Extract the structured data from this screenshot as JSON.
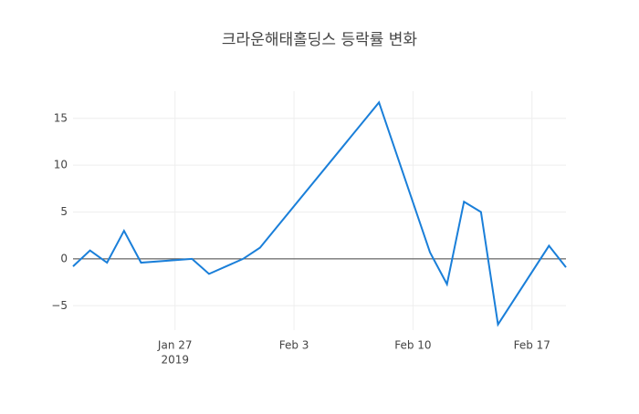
{
  "chart_data": {
    "type": "line",
    "title": "크라운해태홀딩스 등락률 변화",
    "x": [
      "2019-01-21",
      "2019-01-22",
      "2019-01-23",
      "2019-01-24",
      "2019-01-25",
      "2019-01-28",
      "2019-01-29",
      "2019-01-31",
      "2019-02-01",
      "2019-02-08",
      "2019-02-11",
      "2019-02-12",
      "2019-02-13",
      "2019-02-14",
      "2019-02-15",
      "2019-02-18",
      "2019-02-19"
    ],
    "series": [
      {
        "color": "#1a7fd9",
        "values": [
          -0.8,
          0.9,
          -0.4,
          3.0,
          -0.4,
          0.0,
          -1.6,
          0.0,
          1.2,
          16.7,
          0.7,
          -2.7,
          6.1,
          5.0,
          -7.0,
          1.4,
          -0.9
        ]
      }
    ],
    "xlim": [
      "2019-01-21",
      "2019-02-19"
    ],
    "xticks": [
      {
        "value": "2019-01-27",
        "label": "Jan 27"
      },
      {
        "value": "2019-02-03",
        "label": "Feb 3"
      },
      {
        "value": "2019-02-10",
        "label": "Feb 10"
      },
      {
        "value": "2019-02-17",
        "label": "Feb 17"
      }
    ],
    "x_axis_year": "2019",
    "ylim": [
      -7.6,
      17.9
    ],
    "yticks": [
      {
        "value": -5,
        "label": "−5"
      },
      0,
      5,
      10,
      15
    ],
    "grid": true,
    "zeroline": true
  }
}
